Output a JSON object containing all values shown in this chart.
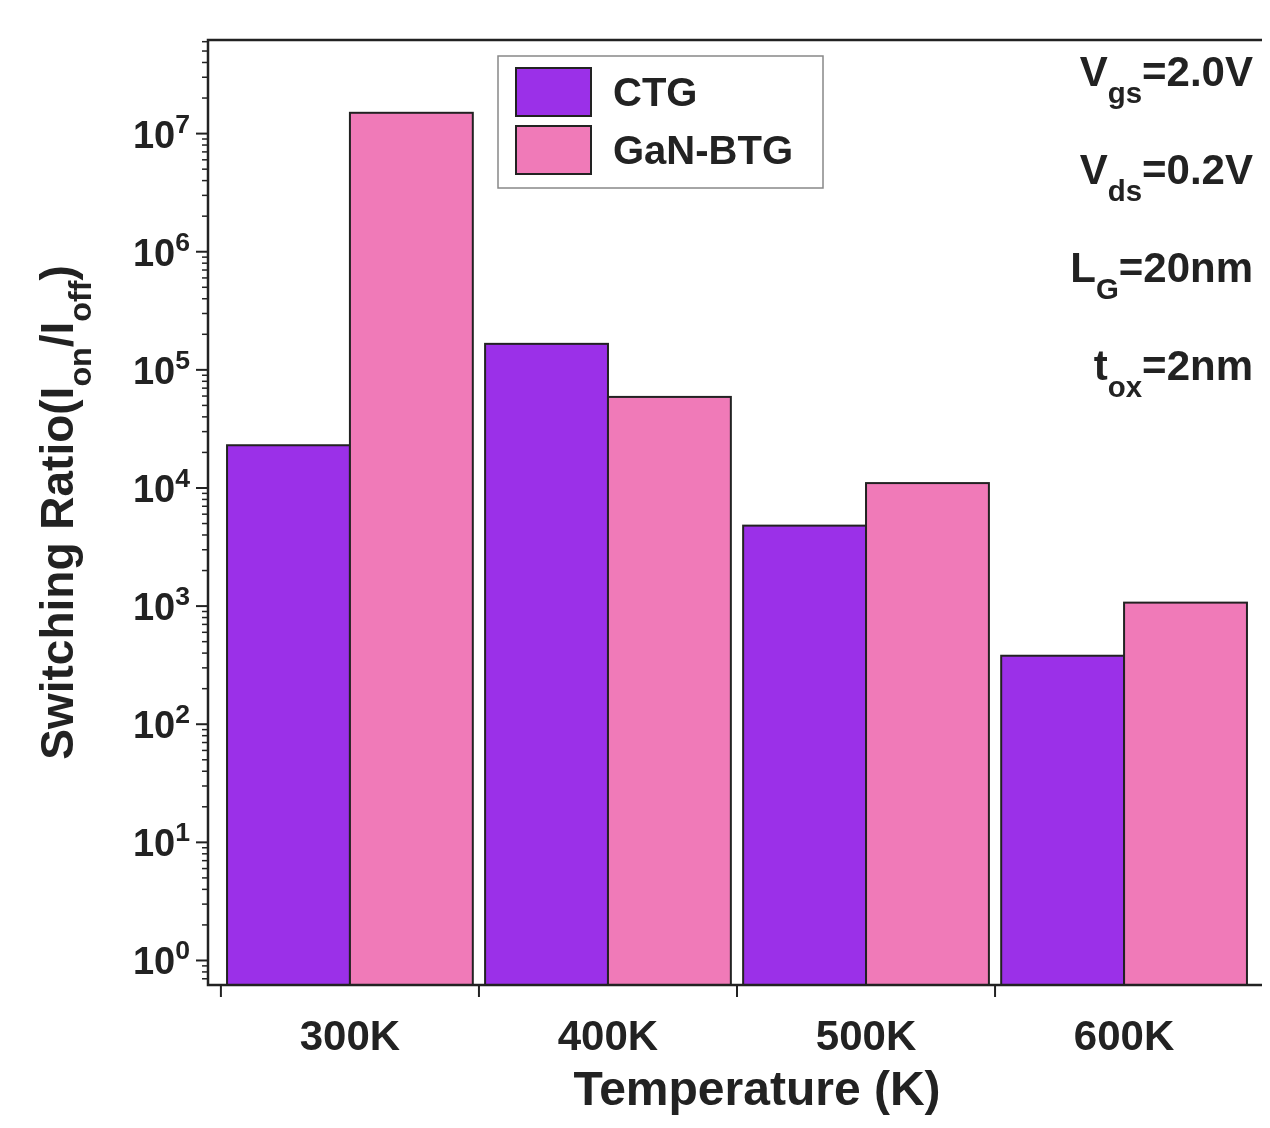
{
  "chart_data": {
    "type": "bar",
    "xlabel": "Temperature (K)",
    "ylabel": "Switching Ratio(I$_{on}$/I$_{off}$)",
    "categories": [
      "300K",
      "400K",
      "500K",
      "600K"
    ],
    "series": [
      {
        "name": "CTG",
        "color": "#9b30e8",
        "values": [
          23000,
          166000,
          4800,
          380
        ]
      },
      {
        "name": "GaN-BTG",
        "color": "#f07ab8",
        "values": [
          15000000,
          59000,
          11000,
          1070
        ]
      }
    ],
    "log": true,
    "ylim": [
      0.62,
      62000000
    ],
    "yticks": [
      {
        "value": 1,
        "label": "10$^{0}$"
      },
      {
        "value": 10,
        "label": "10$^{1}$"
      },
      {
        "value": 100,
        "label": "10$^{2}$"
      },
      {
        "value": 1000,
        "label": "10$^{3}$"
      },
      {
        "value": 10000,
        "label": "10$^{4}$"
      },
      {
        "value": 100000,
        "label": "10$^{5}$"
      },
      {
        "value": 1000000,
        "label": "10$^{6}$"
      },
      {
        "value": 10000000,
        "label": "10$^{7}$"
      }
    ],
    "grid": false,
    "legend": "top",
    "annotations": [
      "V$_{gs}$=2.0V",
      "V$_{ds}$=0.2V",
      "L$_{G}$=20nm",
      "t$_{ox}$=2nm"
    ]
  }
}
